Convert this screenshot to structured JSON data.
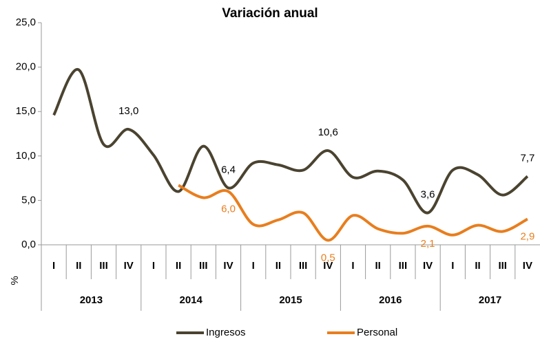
{
  "chart_data": {
    "type": "line",
    "title": "Variación anual",
    "ylabel": "%",
    "categories": [
      "I",
      "II",
      "III",
      "IV",
      "I",
      "II",
      "III",
      "IV",
      "I",
      "II",
      "III",
      "IV",
      "I",
      "II",
      "III",
      "IV",
      "I",
      "II",
      "III",
      "IV"
    ],
    "groups": [
      "2013",
      "2014",
      "2015",
      "2016",
      "2017"
    ],
    "series": [
      {
        "name": "Ingresos",
        "color": "#4a4330",
        "values": [
          14.6,
          19.7,
          11.3,
          13.0,
          10.1,
          6.0,
          11.1,
          6.4,
          9.2,
          9.0,
          8.4,
          10.6,
          7.6,
          8.3,
          7.3,
          3.6,
          8.4,
          7.9,
          5.6,
          7.7
        ],
        "value_labels": [
          null,
          null,
          null,
          "13,0",
          null,
          null,
          null,
          "6,4",
          null,
          null,
          null,
          "10,6",
          null,
          null,
          null,
          "3,6",
          null,
          null,
          null,
          "7,7"
        ]
      },
      {
        "name": "Personal",
        "color": "#e87e1e",
        "values": [
          null,
          null,
          null,
          null,
          null,
          6.7,
          5.3,
          6.0,
          2.3,
          2.8,
          3.6,
          0.5,
          3.3,
          1.8,
          1.3,
          2.1,
          1.1,
          2.2,
          1.5,
          2.9
        ],
        "value_labels": [
          null,
          null,
          null,
          null,
          null,
          null,
          null,
          "6,0",
          null,
          null,
          null,
          "0,5",
          null,
          null,
          null,
          "2,1",
          null,
          null,
          null,
          "2,9"
        ]
      }
    ],
    "ylim": [
      0,
      25
    ],
    "yticks": [
      {
        "value": 0,
        "label": "0,0"
      },
      {
        "value": 5,
        "label": "5,0"
      },
      {
        "value": 10,
        "label": "10,0"
      },
      {
        "value": 15,
        "label": "15,0"
      },
      {
        "value": 20,
        "label": "20,0"
      },
      {
        "value": 25,
        "label": "25,0"
      }
    ],
    "grid": false,
    "legend": "bottom"
  }
}
